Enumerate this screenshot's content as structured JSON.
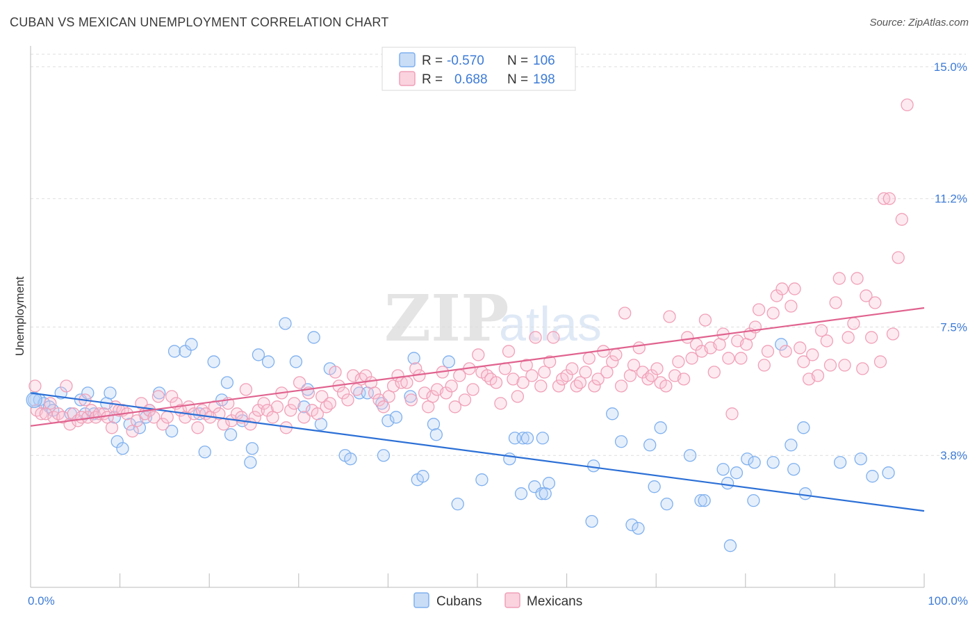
{
  "header": {
    "title": "CUBAN VS MEXICAN UNEMPLOYMENT CORRELATION CHART",
    "source": "Source: ZipAtlas.com"
  },
  "watermark": {
    "zip": "ZIP",
    "atlas": "atlas"
  },
  "legend_top": [
    {
      "r_label": "R =",
      "r_value": "-0.570",
      "n_label": "N =",
      "n_value": "106",
      "color": "#7fb0ee"
    },
    {
      "r_label": "R =",
      "r_value": "0.688",
      "n_label": "N =",
      "n_value": "198",
      "color": "#f0a0b8"
    }
  ],
  "legend_bottom": [
    {
      "label": "Cubans",
      "color": "#7fb0ee"
    },
    {
      "label": "Mexicans",
      "color": "#f0a0b8"
    }
  ],
  "chart_data": {
    "type": "scatter",
    "title": "CUBAN VS MEXICAN UNEMPLOYMENT CORRELATION CHART",
    "xlabel": "",
    "ylabel": "Unemployment",
    "xlim": [
      0,
      100
    ],
    "ylim": [
      0,
      15.6
    ],
    "x_tick_labels": [
      "0.0%",
      "100.0%"
    ],
    "y_ticks": [
      3.8,
      7.5,
      11.2,
      15.0
    ],
    "y_tick_labels": [
      "3.8%",
      "7.5%",
      "11.2%",
      "15.0%"
    ],
    "grid": "horizontal dashed",
    "series": [
      {
        "name": "Cubans",
        "color": "#7fb0ee",
        "line_color": "#2b6fd6",
        "trend": {
          "x": [
            0,
            100
          ],
          "y": [
            5.6,
            2.2
          ]
        },
        "points": [
          [
            0.4,
            5.4
          ],
          [
            1.0,
            5.4
          ],
          [
            1.5,
            5.3
          ],
          [
            2.1,
            5.2
          ],
          [
            2.5,
            5.1
          ],
          [
            3.4,
            5.6
          ],
          [
            4.5,
            5.0
          ],
          [
            5.6,
            5.4
          ],
          [
            6.1,
            5.0
          ],
          [
            6.4,
            5.6
          ],
          [
            7.1,
            5.0
          ],
          [
            8.5,
            5.3
          ],
          [
            8.9,
            5.6
          ],
          [
            9.4,
            4.9
          ],
          [
            9.7,
            4.2
          ],
          [
            10.3,
            4.0
          ],
          [
            11.1,
            4.7
          ],
          [
            12.2,
            4.6
          ],
          [
            12.9,
            4.9
          ],
          [
            13.3,
            5.1
          ],
          [
            14.4,
            5.6
          ],
          [
            15.8,
            4.5
          ],
          [
            16.1,
            6.8
          ],
          [
            17.3,
            6.8
          ],
          [
            18.0,
            7.0
          ],
          [
            18.9,
            5.0
          ],
          [
            19.5,
            3.9
          ],
          [
            20.5,
            6.5
          ],
          [
            21.4,
            5.4
          ],
          [
            22.0,
            5.9
          ],
          [
            22.4,
            4.4
          ],
          [
            23.7,
            4.8
          ],
          [
            24.6,
            3.6
          ],
          [
            24.8,
            4.0
          ],
          [
            25.5,
            6.7
          ],
          [
            26.6,
            6.5
          ],
          [
            28.5,
            7.6
          ],
          [
            29.7,
            6.5
          ],
          [
            30.6,
            5.2
          ],
          [
            31.0,
            5.7
          ],
          [
            31.7,
            7.2
          ],
          [
            32.5,
            4.7
          ],
          [
            33.5,
            6.3
          ],
          [
            35.2,
            3.8
          ],
          [
            35.8,
            3.7
          ],
          [
            36.8,
            5.6
          ],
          [
            37.7,
            5.6
          ],
          [
            39.3,
            5.3
          ],
          [
            39.5,
            3.8
          ],
          [
            40.0,
            4.8
          ],
          [
            40.9,
            4.9
          ],
          [
            42.5,
            5.5
          ],
          [
            42.9,
            6.6
          ],
          [
            43.3,
            3.1
          ],
          [
            43.9,
            3.2
          ],
          [
            45.1,
            4.7
          ],
          [
            45.4,
            4.4
          ],
          [
            46.8,
            6.5
          ],
          [
            47.8,
            2.4
          ],
          [
            50.5,
            3.1
          ],
          [
            53.6,
            3.7
          ],
          [
            54.2,
            4.3
          ],
          [
            54.9,
            2.7
          ],
          [
            55.1,
            4.3
          ],
          [
            55.6,
            4.3
          ],
          [
            56.4,
            2.9
          ],
          [
            57.2,
            2.7
          ],
          [
            57.3,
            4.3
          ],
          [
            57.6,
            2.7
          ],
          [
            58.0,
            3.0
          ],
          [
            62.8,
            1.9
          ],
          [
            63.0,
            3.5
          ],
          [
            65.1,
            5.0
          ],
          [
            66.1,
            4.2
          ],
          [
            67.3,
            1.8
          ],
          [
            68.0,
            1.7
          ],
          [
            69.3,
            4.1
          ],
          [
            69.8,
            2.9
          ],
          [
            70.5,
            4.6
          ],
          [
            71.2,
            2.4
          ],
          [
            73.8,
            3.8
          ],
          [
            75.0,
            2.5
          ],
          [
            75.4,
            2.5
          ],
          [
            77.5,
            3.4
          ],
          [
            78.0,
            3.0
          ],
          [
            78.3,
            1.2
          ],
          [
            79.0,
            3.3
          ],
          [
            80.2,
            3.7
          ],
          [
            80.9,
            2.5
          ],
          [
            81.0,
            3.6
          ],
          [
            83.1,
            3.6
          ],
          [
            84.0,
            7.0
          ],
          [
            85.1,
            4.1
          ],
          [
            85.4,
            3.4
          ],
          [
            86.5,
            4.6
          ],
          [
            86.7,
            2.7
          ],
          [
            90.6,
            3.6
          ],
          [
            92.9,
            3.7
          ],
          [
            94.2,
            3.2
          ],
          [
            96.0,
            3.3
          ]
        ]
      },
      {
        "name": "Mexicans",
        "color": "#f0a0b8",
        "line_color": "#e0628e",
        "trend": {
          "x": [
            0,
            100
          ],
          "y": [
            4.65,
            8.05
          ]
        },
        "points": [
          [
            0.5,
            5.8
          ],
          [
            0.7,
            5.1
          ],
          [
            1.2,
            5.0
          ],
          [
            1.7,
            5.0
          ],
          [
            2.2,
            5.3
          ],
          [
            2.6,
            4.9
          ],
          [
            3.1,
            5.0
          ],
          [
            3.6,
            4.9
          ],
          [
            4.0,
            5.8
          ],
          [
            4.4,
            4.7
          ],
          [
            4.8,
            5.0
          ],
          [
            5.3,
            4.8
          ],
          [
            5.7,
            4.9
          ],
          [
            6.1,
            5.4
          ],
          [
            6.4,
            4.9
          ],
          [
            6.8,
            5.1
          ],
          [
            7.3,
            4.9
          ],
          [
            7.7,
            5.0
          ],
          [
            8.2,
            5.0
          ],
          [
            8.6,
            4.9
          ],
          [
            9.1,
            4.6
          ],
          [
            9.5,
            5.2
          ],
          [
            9.9,
            5.1
          ],
          [
            10.3,
            5.1
          ],
          [
            10.8,
            5.0
          ],
          [
            11.4,
            4.5
          ],
          [
            11.9,
            4.8
          ],
          [
            12.4,
            5.3
          ],
          [
            12.8,
            5.0
          ],
          [
            13.3,
            5.1
          ],
          [
            13.8,
            4.9
          ],
          [
            14.3,
            5.5
          ],
          [
            14.8,
            4.7
          ],
          [
            15.3,
            4.9
          ],
          [
            15.8,
            5.5
          ],
          [
            16.3,
            5.3
          ],
          [
            16.8,
            5.1
          ],
          [
            17.3,
            4.9
          ],
          [
            17.7,
            5.2
          ],
          [
            18.3,
            5.0
          ],
          [
            18.7,
            4.6
          ],
          [
            19.2,
            5.1
          ],
          [
            19.6,
            5.0
          ],
          [
            20.1,
            4.9
          ],
          [
            20.6,
            5.2
          ],
          [
            21.1,
            5.0
          ],
          [
            21.6,
            4.7
          ],
          [
            22.1,
            5.3
          ],
          [
            22.5,
            4.8
          ],
          [
            23.1,
            5.0
          ],
          [
            23.6,
            4.9
          ],
          [
            24.1,
            5.7
          ],
          [
            24.6,
            4.7
          ],
          [
            25.1,
            4.9
          ],
          [
            25.5,
            5.1
          ],
          [
            26.1,
            5.3
          ],
          [
            26.5,
            5.1
          ],
          [
            27.1,
            4.9
          ],
          [
            27.6,
            5.2
          ],
          [
            28.1,
            5.6
          ],
          [
            28.6,
            4.6
          ],
          [
            29.1,
            5.1
          ],
          [
            29.5,
            5.3
          ],
          [
            30.1,
            5.9
          ],
          [
            30.6,
            4.9
          ],
          [
            31.1,
            5.6
          ],
          [
            31.5,
            5.1
          ],
          [
            32.1,
            5.0
          ],
          [
            32.6,
            5.5
          ],
          [
            33.1,
            5.2
          ],
          [
            33.5,
            5.3
          ],
          [
            34.1,
            6.2
          ],
          [
            34.5,
            5.8
          ],
          [
            35.0,
            5.6
          ],
          [
            35.5,
            5.4
          ],
          [
            36.1,
            6.1
          ],
          [
            36.5,
            5.7
          ],
          [
            37.0,
            6.0
          ],
          [
            37.5,
            6.1
          ],
          [
            38.1,
            5.9
          ],
          [
            38.5,
            5.6
          ],
          [
            39.0,
            5.4
          ],
          [
            39.5,
            5.2
          ],
          [
            40.1,
            5.5
          ],
          [
            40.6,
            5.8
          ],
          [
            41.1,
            6.1
          ],
          [
            41.5,
            5.9
          ],
          [
            42.1,
            5.9
          ],
          [
            42.6,
            5.4
          ],
          [
            43.1,
            6.3
          ],
          [
            43.5,
            6.1
          ],
          [
            44.1,
            5.6
          ],
          [
            44.5,
            5.2
          ],
          [
            45.0,
            5.5
          ],
          [
            45.5,
            5.7
          ],
          [
            46.1,
            6.2
          ],
          [
            46.5,
            5.6
          ],
          [
            47.1,
            5.8
          ],
          [
            47.5,
            5.2
          ],
          [
            48.0,
            6.1
          ],
          [
            48.6,
            5.4
          ],
          [
            49.1,
            6.3
          ],
          [
            49.5,
            5.7
          ],
          [
            50.1,
            6.7
          ],
          [
            50.5,
            6.2
          ],
          [
            51.1,
            6.1
          ],
          [
            51.5,
            6.0
          ],
          [
            52.1,
            5.9
          ],
          [
            52.6,
            5.3
          ],
          [
            53.1,
            6.3
          ],
          [
            53.5,
            6.8
          ],
          [
            54.0,
            6.0
          ],
          [
            54.5,
            5.5
          ],
          [
            55.1,
            5.9
          ],
          [
            55.5,
            6.4
          ],
          [
            56.1,
            6.1
          ],
          [
            56.5,
            7.2
          ],
          [
            57.1,
            5.8
          ],
          [
            57.5,
            6.2
          ],
          [
            58.1,
            6.5
          ],
          [
            58.5,
            7.2
          ],
          [
            59.1,
            5.8
          ],
          [
            59.5,
            6.0
          ],
          [
            60.0,
            6.1
          ],
          [
            60.6,
            6.3
          ],
          [
            61.1,
            5.8
          ],
          [
            61.5,
            5.9
          ],
          [
            62.1,
            6.2
          ],
          [
            62.5,
            6.6
          ],
          [
            63.1,
            5.8
          ],
          [
            63.5,
            6.0
          ],
          [
            64.1,
            6.8
          ],
          [
            64.5,
            6.2
          ],
          [
            65.1,
            6.5
          ],
          [
            65.5,
            6.7
          ],
          [
            66.1,
            5.8
          ],
          [
            66.5,
            7.9
          ],
          [
            67.1,
            6.1
          ],
          [
            67.5,
            6.4
          ],
          [
            68.1,
            6.9
          ],
          [
            68.5,
            6.2
          ],
          [
            69.1,
            6.0
          ],
          [
            69.5,
            6.1
          ],
          [
            70.1,
            6.3
          ],
          [
            70.5,
            5.9
          ],
          [
            71.1,
            5.8
          ],
          [
            71.5,
            7.8
          ],
          [
            72.1,
            6.1
          ],
          [
            72.5,
            6.5
          ],
          [
            73.1,
            6.0
          ],
          [
            73.5,
            7.2
          ],
          [
            74.0,
            6.6
          ],
          [
            74.5,
            7.0
          ],
          [
            75.1,
            6.8
          ],
          [
            75.5,
            7.7
          ],
          [
            76.1,
            6.9
          ],
          [
            76.5,
            6.2
          ],
          [
            77.1,
            7.0
          ],
          [
            77.5,
            7.3
          ],
          [
            78.1,
            6.6
          ],
          [
            78.5,
            5.0
          ],
          [
            79.1,
            7.1
          ],
          [
            79.5,
            6.6
          ],
          [
            80.1,
            7.0
          ],
          [
            80.5,
            7.3
          ],
          [
            81.1,
            7.5
          ],
          [
            81.5,
            8.0
          ],
          [
            82.1,
            6.4
          ],
          [
            82.5,
            6.8
          ],
          [
            83.1,
            7.9
          ],
          [
            83.5,
            8.4
          ],
          [
            84.1,
            8.6
          ],
          [
            84.5,
            6.8
          ],
          [
            85.1,
            8.1
          ],
          [
            85.5,
            8.6
          ],
          [
            86.1,
            6.9
          ],
          [
            86.5,
            6.5
          ],
          [
            87.1,
            6.0
          ],
          [
            87.5,
            6.7
          ],
          [
            88.1,
            6.1
          ],
          [
            88.5,
            7.4
          ],
          [
            89.1,
            7.1
          ],
          [
            89.5,
            6.4
          ],
          [
            90.1,
            8.2
          ],
          [
            90.5,
            8.9
          ],
          [
            91.1,
            6.4
          ],
          [
            91.5,
            7.2
          ],
          [
            92.1,
            7.6
          ],
          [
            92.5,
            8.9
          ],
          [
            93.1,
            6.3
          ],
          [
            93.5,
            8.4
          ],
          [
            94.1,
            7.2
          ],
          [
            94.5,
            8.2
          ],
          [
            95.1,
            6.5
          ],
          [
            95.5,
            11.2
          ],
          [
            96.1,
            11.2
          ],
          [
            96.5,
            7.3
          ],
          [
            97.1,
            9.5
          ],
          [
            97.5,
            10.6
          ],
          [
            98.1,
            13.9
          ]
        ]
      }
    ]
  }
}
